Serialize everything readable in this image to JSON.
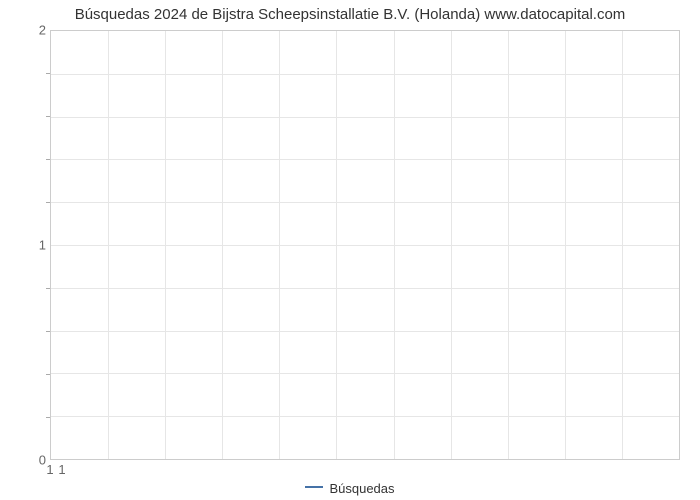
{
  "chart": {
    "type": "line",
    "title": "Búsquedas 2024 de Bijstra Scheepsinstallatie B.V. (Holanda) www.datocapital.com",
    "title_fontsize": 15,
    "title_color": "#333333",
    "background_color": "#ffffff",
    "plot_border_color": "#cccccc",
    "grid_color": "#e6e6e6",
    "tick_label_color": "#666666",
    "tick_label_fontsize": 13,
    "x": {
      "min": 1,
      "max": 12,
      "grid_count": 11,
      "tick_labels": [
        {
          "pos": 1,
          "text": "1"
        },
        {
          "pos": 1.42,
          "text": "1"
        }
      ]
    },
    "y": {
      "min": 0,
      "max": 2,
      "major_ticks": [
        0,
        1,
        2
      ],
      "minor_ticks": [
        0.2,
        0.4,
        0.6,
        0.8,
        1.2,
        1.4,
        1.6,
        1.8
      ],
      "grid_count": 10
    },
    "series": [
      {
        "name": "Búsquedas",
        "color": "#4572a7",
        "data": []
      }
    ],
    "legend_position": "bottom"
  }
}
